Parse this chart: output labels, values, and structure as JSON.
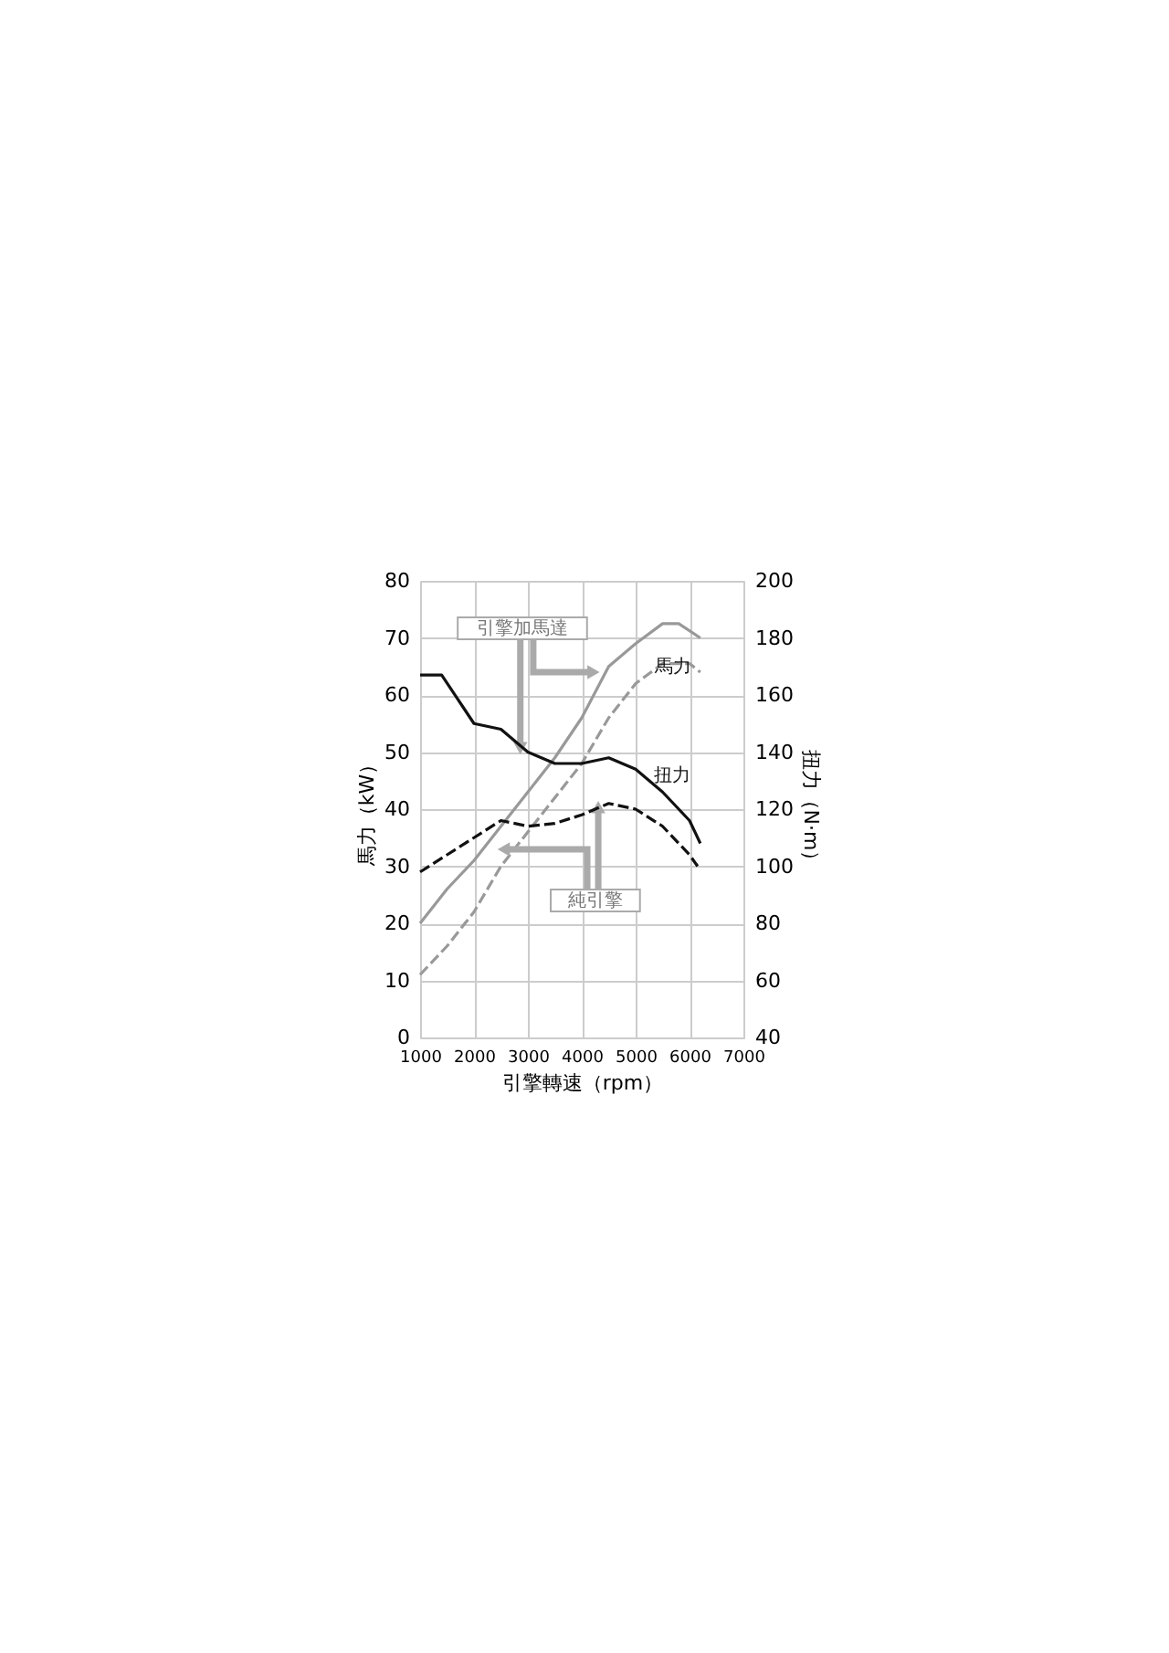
{
  "chart_data": {
    "type": "line",
    "xlabel": "引擎轉速（rpm）",
    "ylabel": "馬力（kW）",
    "y2label": "扭力（N·m）",
    "xlim": [
      1000,
      7000
    ],
    "xticks": [
      1000,
      2000,
      3000,
      4000,
      5000,
      6000,
      7000
    ],
    "ylim": [
      0,
      80
    ],
    "yticks": [
      0,
      10,
      20,
      30,
      40,
      50,
      60,
      70,
      80
    ],
    "y2lim": [
      40,
      200
    ],
    "y2ticks": [
      40,
      60,
      80,
      100,
      120,
      140,
      160,
      180,
      200
    ],
    "grid": true,
    "series": [
      {
        "color": "#999999",
        "line_style": "solid",
        "x": [
          1000,
          1500,
          2000,
          2500,
          3000,
          3500,
          4000,
          4500,
          5000,
          5500,
          5800,
          6200
        ],
        "values": [
          20,
          26,
          31,
          37,
          43,
          49,
          56,
          65,
          69,
          72.5,
          72.5,
          70
        ]
      },
      {
        "color": "#999999",
        "line_style": "dashed",
        "x": [
          1000,
          1500,
          2000,
          2500,
          3000,
          3500,
          4000,
          4500,
          5000,
          5500,
          6000,
          6200
        ],
        "values": [
          11,
          16,
          22,
          30,
          36,
          42,
          48,
          56,
          62,
          65.5,
          65.5,
          64
        ]
      },
      {
        "color": "#111111",
        "line_style": "solid",
        "axis": "y2",
        "x": [
          1000,
          1400,
          2000,
          2500,
          3000,
          3500,
          4000,
          4500,
          5000,
          5500,
          6000,
          6200
        ],
        "values": [
          167,
          167,
          150,
          148,
          140,
          136,
          136,
          138,
          134,
          126,
          116,
          108
        ]
      },
      {
        "color": "#111111",
        "line_style": "dashed",
        "axis": "y2",
        "x": [
          1000,
          1500,
          2000,
          2500,
          3000,
          3500,
          4000,
          4500,
          5000,
          5500,
          6000,
          6150
        ],
        "values": [
          98,
          104,
          110,
          116,
          114,
          115,
          118,
          122,
          120,
          114,
          104,
          100
        ]
      }
    ],
    "annotations": [
      {
        "text": "引擎加馬達",
        "x": 2850,
        "y": 51
      },
      {
        "text": "純引擎",
        "x": 4300,
        "y": 40
      },
      {
        "text": "馬力",
        "x": 5700,
        "y": 65
      },
      "扭力"
    ]
  }
}
